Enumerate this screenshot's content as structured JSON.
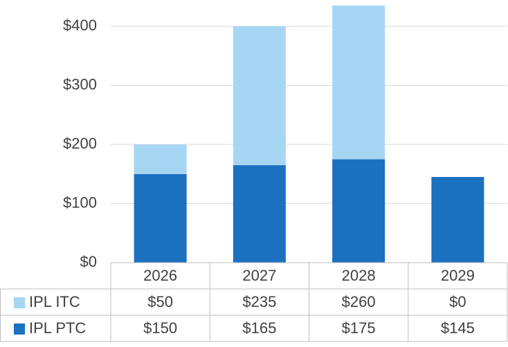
{
  "chart_data": {
    "type": "stacked_bar",
    "categories": [
      "2026",
      "2027",
      "2028",
      "2029"
    ],
    "series": [
      {
        "name": "IPL ITC",
        "color": "#a6d6f2",
        "values": [
          50,
          235,
          260,
          0
        ],
        "value_labels": [
          "$50",
          "$235",
          "$260",
          "$0"
        ]
      },
      {
        "name": "IPL PTC",
        "color": "#1b70c0",
        "values": [
          150,
          165,
          175,
          145
        ],
        "value_labels": [
          "$150",
          "$165",
          "$175",
          "$145"
        ]
      }
    ],
    "ylim": [
      0,
      440
    ],
    "yticks": [
      {
        "value": 0,
        "label": "$0"
      },
      {
        "value": 100,
        "label": "$100"
      },
      {
        "value": 200,
        "label": "$200"
      },
      {
        "value": 300,
        "label": "$300"
      },
      {
        "value": 400,
        "label": "$400"
      }
    ],
    "grid": true
  }
}
